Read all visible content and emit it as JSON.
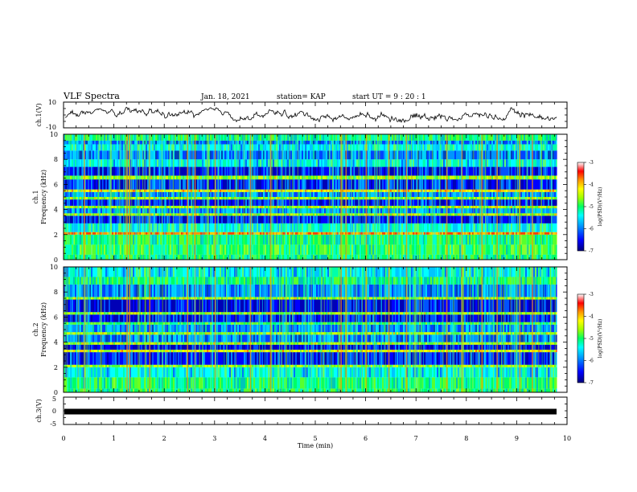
{
  "header": {
    "title": "VLF Spectra",
    "date": "Jan. 18, 2021",
    "station": "station= KAP",
    "start_ut": "start  UT =   9 : 20 : 1"
  },
  "chart_data": [
    {
      "type": "line",
      "panel": "ch1-waveform",
      "ylabel": "ch.1(V)",
      "ylim": [
        -10,
        10
      ],
      "yticks": [
        "10",
        "-10"
      ],
      "xlim": [
        0,
        10
      ],
      "xlabel": ""
    },
    {
      "type": "heatmap",
      "panel": "ch1-spectrogram",
      "ylabel": "ch.1",
      "ylabel2": "Frequency  (kHz)",
      "ylim": [
        0,
        10
      ],
      "yticks": [
        "0",
        "2",
        "4",
        "6",
        "8",
        "10"
      ],
      "xlim": [
        0,
        10
      ],
      "bands": [
        {
          "y0": 0.0,
          "y1": 0.4,
          "level": -5.2
        },
        {
          "y0": 0.4,
          "y1": 1.2,
          "level": -4.9
        },
        {
          "y0": 1.2,
          "y1": 2.0,
          "level": -5.1
        },
        {
          "y0": 2.0,
          "y1": 2.2,
          "level": -3.6
        },
        {
          "y0": 2.2,
          "y1": 2.9,
          "level": -5.3
        },
        {
          "y0": 2.9,
          "y1": 3.5,
          "level": -6.3
        },
        {
          "y0": 3.5,
          "y1": 3.7,
          "level": -4.4
        },
        {
          "y0": 3.7,
          "y1": 4.1,
          "level": -5.8
        },
        {
          "y0": 4.1,
          "y1": 4.3,
          "level": -4.5
        },
        {
          "y0": 4.3,
          "y1": 4.8,
          "level": -6.3
        },
        {
          "y0": 4.8,
          "y1": 5.0,
          "level": -4.6
        },
        {
          "y0": 5.0,
          "y1": 5.4,
          "level": -5.9
        },
        {
          "y0": 5.4,
          "y1": 5.6,
          "level": -4.0
        },
        {
          "y0": 5.6,
          "y1": 6.4,
          "level": -6.2
        },
        {
          "y0": 6.4,
          "y1": 6.7,
          "level": -4.6
        },
        {
          "y0": 6.7,
          "y1": 7.4,
          "level": -6.4
        },
        {
          "y0": 7.4,
          "y1": 8.0,
          "level": -5.4
        },
        {
          "y0": 8.0,
          "y1": 8.7,
          "level": -6.0
        },
        {
          "y0": 8.7,
          "y1": 9.2,
          "level": -5.4
        },
        {
          "y0": 9.2,
          "y1": 9.5,
          "level": -5.9
        },
        {
          "y0": 9.5,
          "y1": 10.0,
          "level": -5.2
        }
      ],
      "streaks": [
        0.4,
        1.25,
        1.3,
        1.7,
        2.45,
        2.6,
        3.0,
        3.7,
        4.1,
        5.5,
        5.6,
        6.0,
        6.45,
        6.8,
        7.6,
        7.9,
        8.3,
        8.6,
        9.05,
        9.3
      ]
    },
    {
      "type": "heatmap",
      "panel": "ch2-spectrogram",
      "ylabel": "ch.2",
      "ylabel2": "Frequency  (kHz)",
      "ylim": [
        0,
        10
      ],
      "yticks": [
        "0",
        "2",
        "4",
        "6",
        "8",
        "10"
      ],
      "xlim": [
        0,
        10
      ],
      "bands": [
        {
          "y0": 0.0,
          "y1": 0.3,
          "level": -5.0
        },
        {
          "y0": 0.3,
          "y1": 1.2,
          "level": -5.1
        },
        {
          "y0": 1.2,
          "y1": 2.0,
          "level": -5.5
        },
        {
          "y0": 2.0,
          "y1": 2.2,
          "level": -4.7
        },
        {
          "y0": 2.2,
          "y1": 3.2,
          "level": -6.3
        },
        {
          "y0": 3.2,
          "y1": 3.4,
          "level": -4.2
        },
        {
          "y0": 3.4,
          "y1": 3.8,
          "level": -6.5
        },
        {
          "y0": 3.8,
          "y1": 4.0,
          "level": -4.5
        },
        {
          "y0": 4.0,
          "y1": 4.6,
          "level": -6.0
        },
        {
          "y0": 4.6,
          "y1": 4.8,
          "level": -4.6
        },
        {
          "y0": 4.8,
          "y1": 5.4,
          "level": -5.8
        },
        {
          "y0": 5.4,
          "y1": 5.6,
          "level": -4.8
        },
        {
          "y0": 5.6,
          "y1": 6.2,
          "level": -6.3
        },
        {
          "y0": 6.2,
          "y1": 6.4,
          "level": -4.6
        },
        {
          "y0": 6.4,
          "y1": 7.4,
          "level": -6.5
        },
        {
          "y0": 7.4,
          "y1": 7.6,
          "level": -4.5
        },
        {
          "y0": 7.6,
          "y1": 8.6,
          "level": -5.9
        },
        {
          "y0": 8.6,
          "y1": 9.2,
          "level": -5.2
        },
        {
          "y0": 9.2,
          "y1": 10.0,
          "level": -5.5
        }
      ],
      "streaks": [
        0.4,
        1.25,
        1.3,
        1.7,
        2.45,
        2.6,
        3.0,
        3.7,
        4.1,
        5.5,
        5.6,
        6.0,
        6.45,
        6.8,
        7.6,
        7.9,
        8.3,
        8.6,
        9.05,
        9.3
      ]
    },
    {
      "type": "line",
      "panel": "ch3-waveform",
      "ylabel": "ch.3(V)",
      "ylim": [
        -5,
        5
      ],
      "yticks": [
        "5",
        "0",
        "-5"
      ],
      "xlim": [
        0,
        10
      ],
      "xticks": [
        "0",
        "1",
        "2",
        "3",
        "4",
        "5",
        "6",
        "7",
        "8",
        "9",
        "10"
      ],
      "xlabel": "Time  (min)",
      "level": -0.3
    }
  ],
  "colorbar": {
    "range": [
      -7,
      -3
    ],
    "ticks": [
      "-3",
      "-4",
      "-5",
      "-6",
      "-7"
    ],
    "label": "log(PSD)(V²/Hz)",
    "colors": [
      "#00007a",
      "#0000ff",
      "#0096ff",
      "#00ffff",
      "#00ff64",
      "#a0ff00",
      "#ffff00",
      "#ff9600",
      "#ff0000",
      "#ffffff"
    ]
  }
}
